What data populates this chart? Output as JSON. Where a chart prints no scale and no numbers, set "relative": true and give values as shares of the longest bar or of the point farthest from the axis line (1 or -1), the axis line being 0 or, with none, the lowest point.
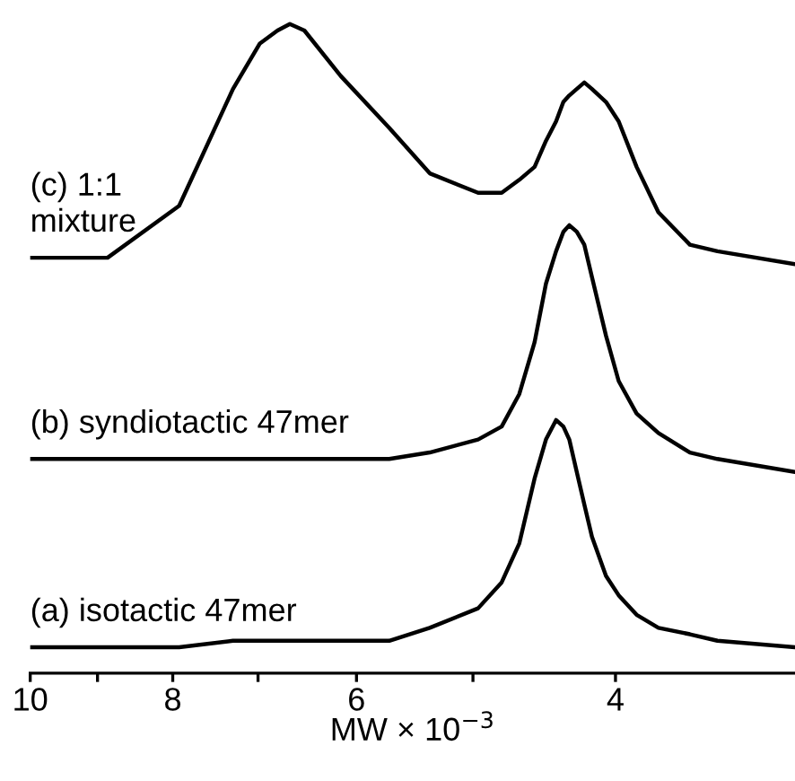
{
  "chart_data": {
    "type": "line",
    "relative": true,
    "log": "x",
    "xlabel": "MW × 10$^{−3}$",
    "x": [
      10,
      8.86,
      7.92,
      7.28,
      6.98,
      6.79,
      6.66,
      6.51,
      6.15,
      5.7,
      5.35,
      4.96,
      4.78,
      4.65,
      4.54,
      4.46,
      4.39,
      4.34,
      4.3,
      4.25,
      4.2,
      4.15,
      4.06,
      3.98,
      3.87,
      3.74,
      3.56,
      3.41,
      3.02
    ],
    "xlim": [
      10,
      3.02
    ],
    "xticks": [
      10,
      {
        "value": 9,
        "label": null
      },
      8,
      {
        "value": 7,
        "label": null
      },
      6,
      {
        "value": 5,
        "label": null
      },
      4
    ],
    "line_style": "solid",
    "marker": "none",
    "grid": false,
    "legend": false,
    "series": [
      {
        "name": "(c) 1:1\nmixture",
        "color": "#000000",
        "values": [
          0.64,
          0.64,
          0.72,
          0.9,
          0.97,
          0.99,
          1.0,
          0.99,
          0.92,
          0.84,
          0.77,
          0.74,
          0.74,
          0.76,
          0.78,
          0.82,
          0.85,
          0.88,
          0.89,
          0.9,
          0.91,
          0.9,
          0.88,
          0.85,
          0.78,
          0.71,
          0.66,
          0.65,
          0.63
        ]
      },
      {
        "name": "(b) syndiotactic 47mer",
        "color": "#000000",
        "values": [
          0.33,
          0.33,
          0.33,
          0.33,
          0.33,
          0.33,
          0.33,
          0.33,
          0.33,
          0.33,
          0.34,
          0.36,
          0.38,
          0.43,
          0.51,
          0.6,
          0.65,
          0.68,
          0.69,
          0.68,
          0.66,
          0.61,
          0.52,
          0.45,
          0.4,
          0.37,
          0.34,
          0.33,
          0.31
        ]
      },
      {
        "name": "(a) isotactic 47mer",
        "color": "#000000",
        "values": [
          0.04,
          0.04,
          0.04,
          0.05,
          0.05,
          0.05,
          0.05,
          0.05,
          0.05,
          0.05,
          0.07,
          0.1,
          0.14,
          0.2,
          0.3,
          0.36,
          0.39,
          0.38,
          0.36,
          0.31,
          0.26,
          0.21,
          0.15,
          0.12,
          0.09,
          0.07,
          0.06,
          0.05,
          0.04
        ]
      }
    ]
  }
}
